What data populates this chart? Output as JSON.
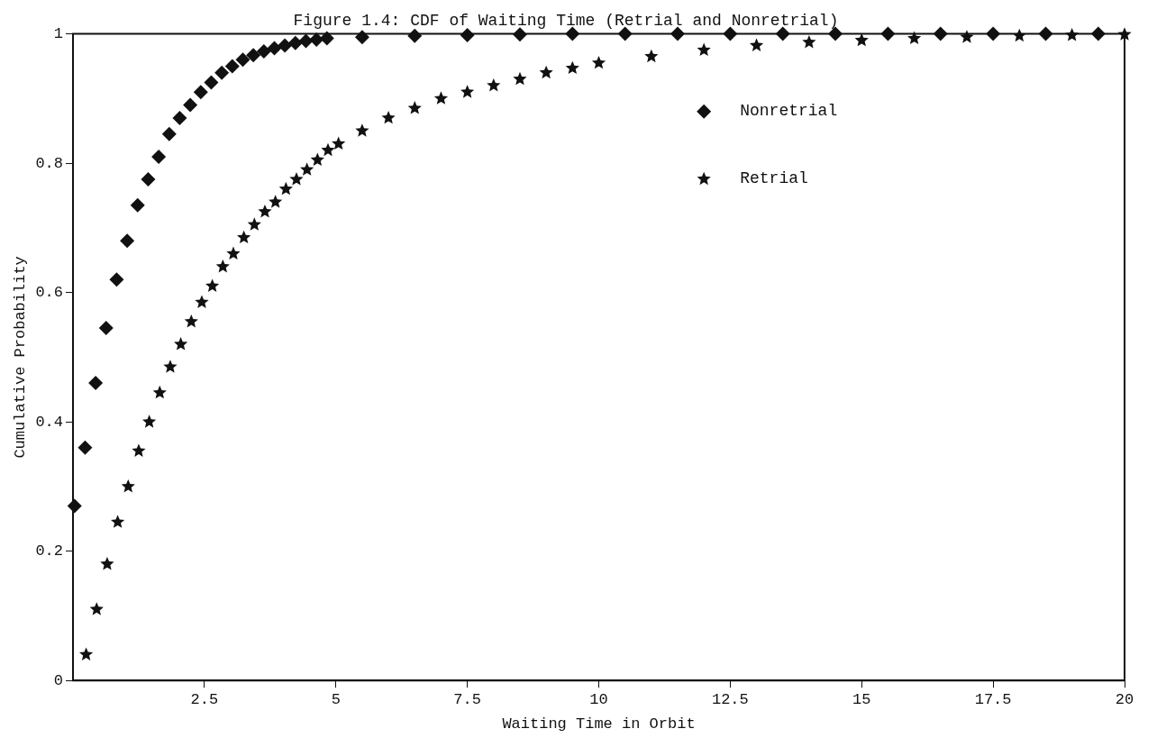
{
  "chart_data": {
    "type": "scatter",
    "title": "Figure 1.4: CDF of Waiting Time (Retrial and Nonretrial)",
    "xlabel": "Waiting Time in Orbit",
    "ylabel": "Cumulative Probability",
    "xlim": [
      0,
      20
    ],
    "ylim": [
      0,
      1
    ],
    "xticks": [
      2.5,
      5,
      7.5,
      10,
      12.5,
      15,
      17.5,
      20
    ],
    "yticks": [
      0,
      0.2,
      0.4,
      0.6,
      0.8,
      1
    ],
    "grid": false,
    "legend": "top right",
    "series": [
      {
        "name": "Nonretrial",
        "color": "#111111",
        "marker": "diamond",
        "x": [
          0.03,
          0.23,
          0.43,
          0.63,
          0.83,
          1.03,
          1.23,
          1.43,
          1.63,
          1.83,
          2.03,
          2.23,
          2.43,
          2.63,
          2.83,
          3.03,
          3.23,
          3.43,
          3.63,
          3.83,
          4.03,
          4.23,
          4.43,
          4.63,
          4.83,
          5.5,
          6.5,
          7.5,
          8.5,
          9.5,
          10.5,
          11.5,
          12.5,
          13.5,
          14.5,
          15.5,
          16.5,
          17.5,
          18.5,
          19.5
        ],
        "values": [
          0.27,
          0.36,
          0.46,
          0.545,
          0.62,
          0.68,
          0.735,
          0.775,
          0.81,
          0.845,
          0.87,
          0.89,
          0.91,
          0.925,
          0.94,
          0.95,
          0.96,
          0.967,
          0.973,
          0.978,
          0.982,
          0.986,
          0.989,
          0.991,
          0.993,
          0.995,
          0.997,
          0.998,
          0.999,
          1,
          1,
          1,
          1,
          1,
          1,
          1,
          1,
          1,
          1,
          1
        ]
      },
      {
        "name": "Retrial",
        "color": "#111111",
        "marker": "star",
        "x": [
          0.25,
          0.45,
          0.65,
          0.85,
          1.05,
          1.25,
          1.45,
          1.65,
          1.85,
          2.05,
          2.25,
          2.45,
          2.65,
          2.85,
          3.05,
          3.25,
          3.45,
          3.65,
          3.85,
          4.05,
          4.25,
          4.45,
          4.65,
          4.85,
          5.05,
          5.5,
          6,
          6.5,
          7,
          7.5,
          8,
          8.5,
          9,
          9.5,
          10,
          11,
          12,
          13,
          14,
          15,
          16,
          17,
          18,
          19,
          20
        ],
        "values": [
          0.04,
          0.11,
          0.18,
          0.245,
          0.3,
          0.355,
          0.4,
          0.445,
          0.485,
          0.52,
          0.555,
          0.585,
          0.61,
          0.64,
          0.66,
          0.685,
          0.705,
          0.725,
          0.74,
          0.76,
          0.775,
          0.79,
          0.805,
          0.82,
          0.83,
          0.85,
          0.87,
          0.885,
          0.9,
          0.91,
          0.92,
          0.93,
          0.94,
          0.947,
          0.955,
          0.965,
          0.975,
          0.982,
          0.987,
          0.99,
          0.993,
          0.995,
          0.997,
          0.998,
          0.999
        ]
      }
    ]
  }
}
